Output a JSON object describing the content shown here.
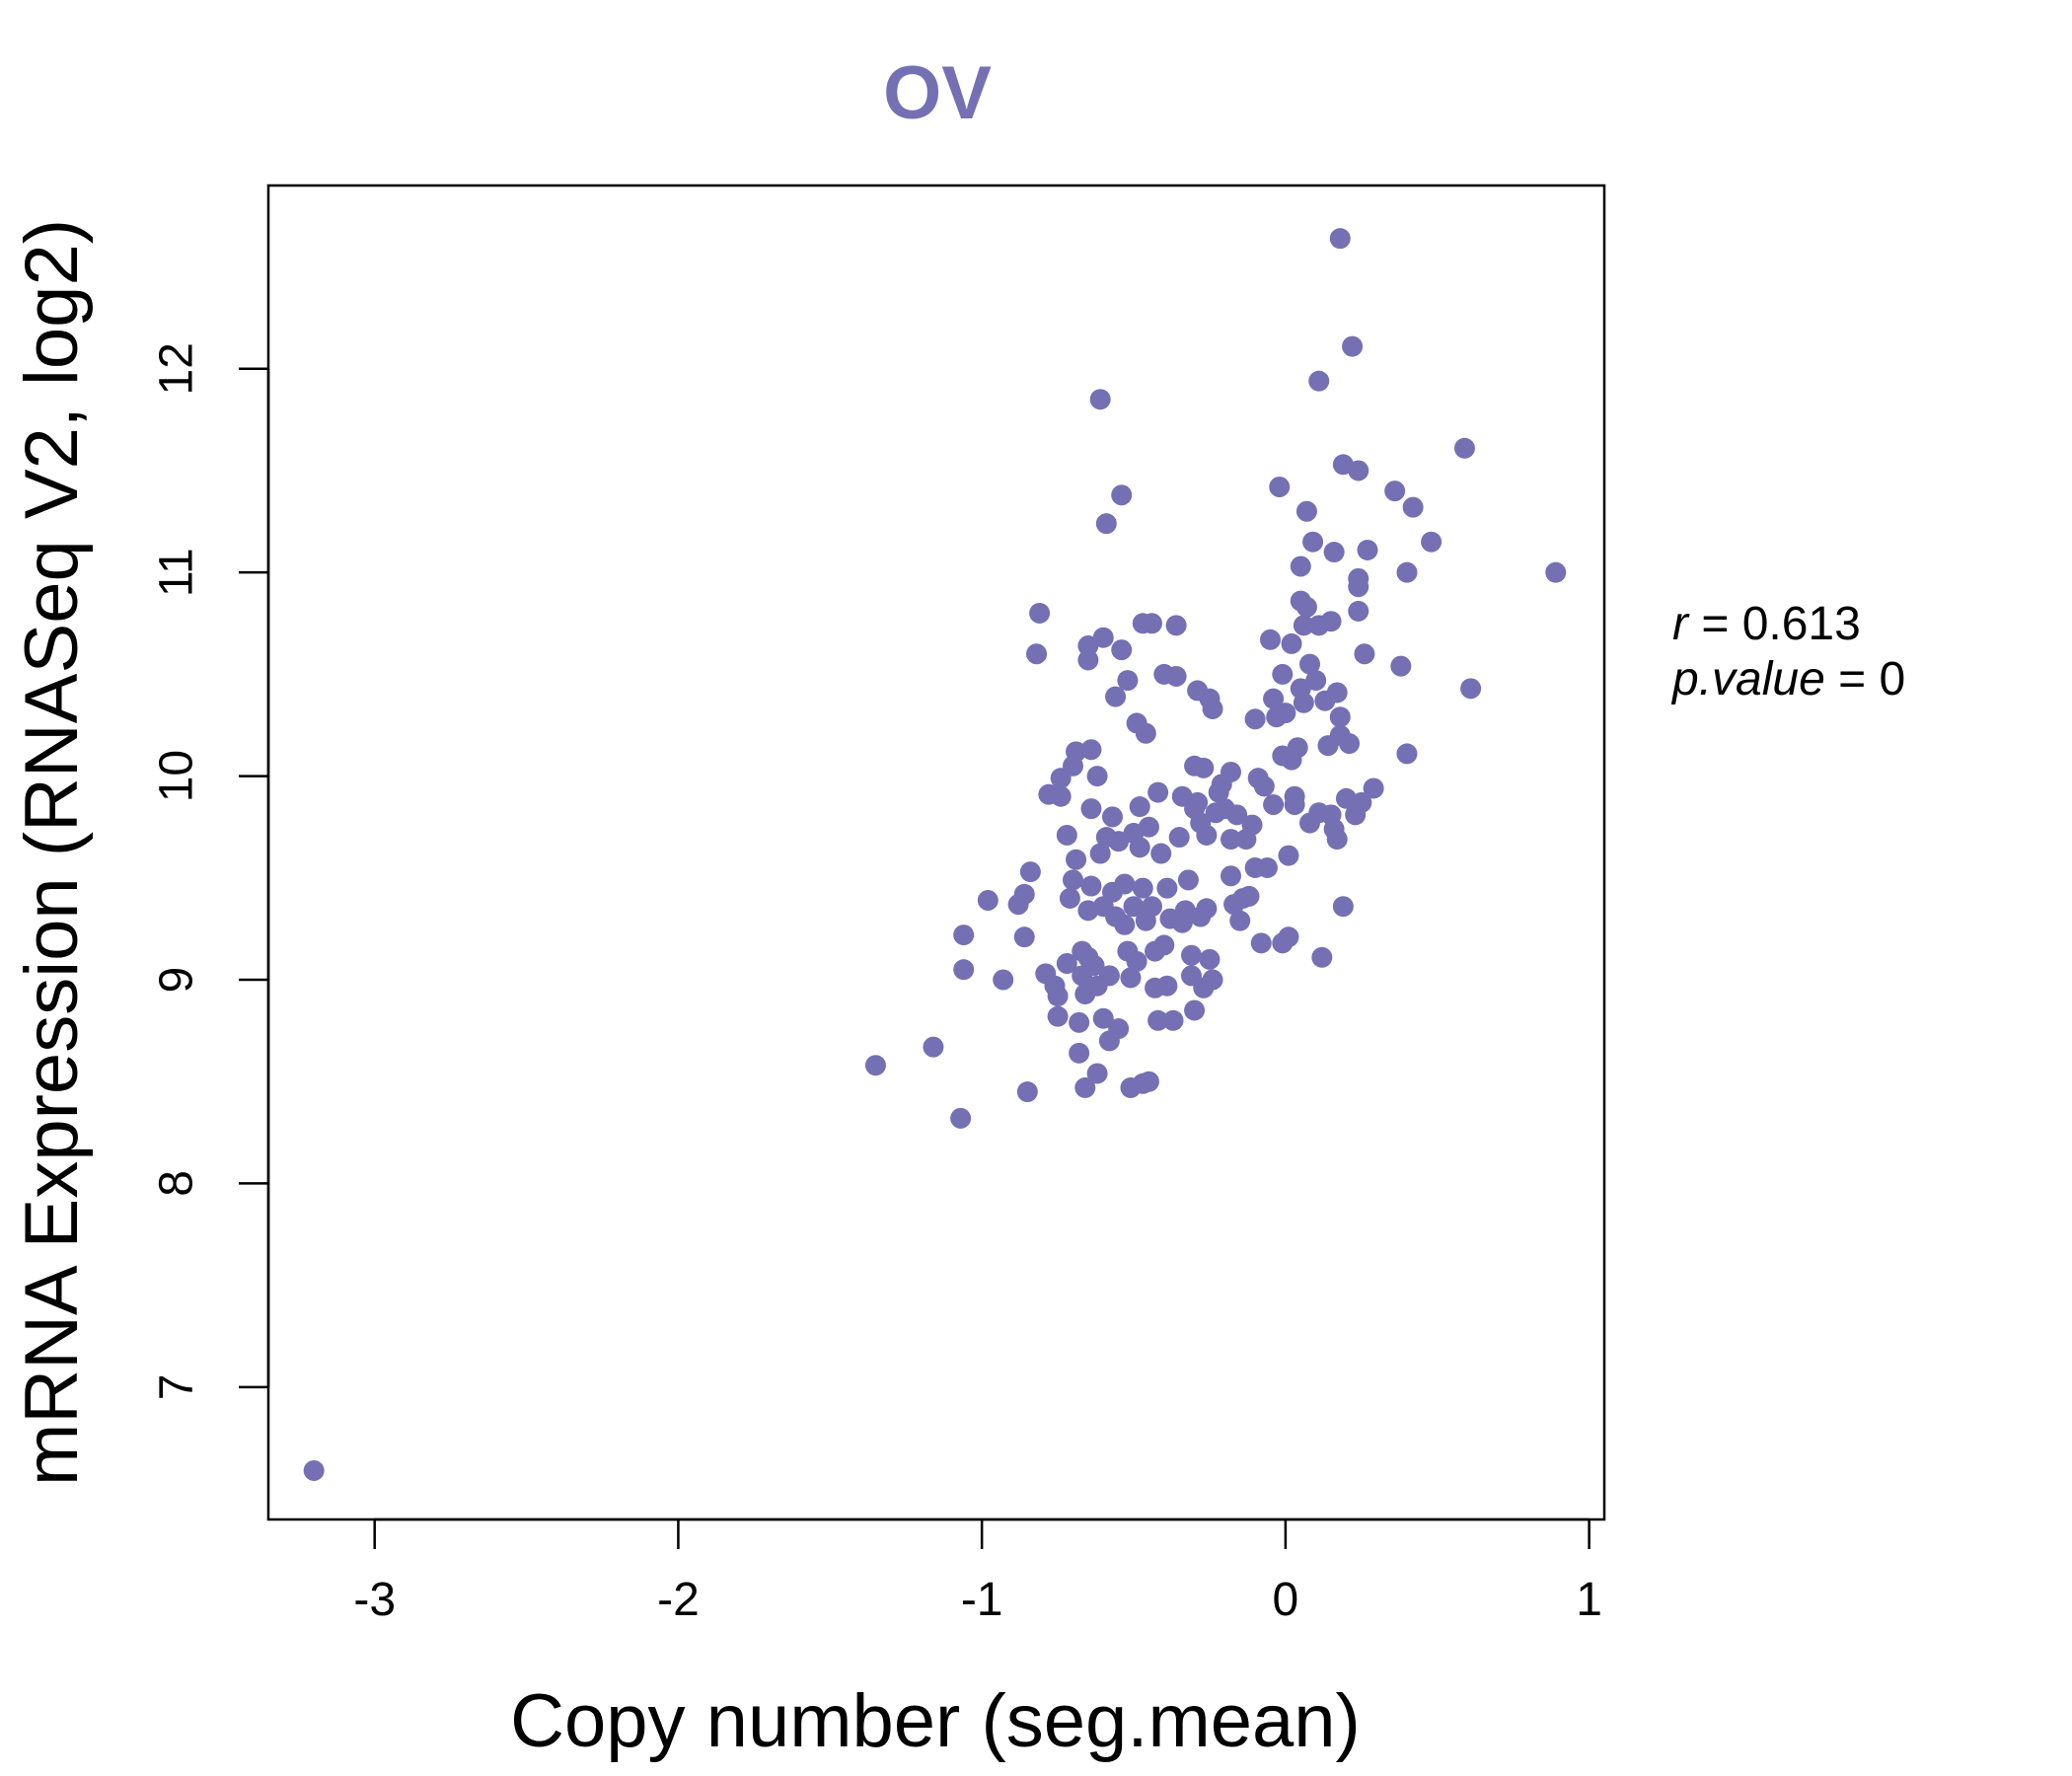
{
  "chart_data": {
    "type": "scatter",
    "title": "OV",
    "xlabel": "Copy number (seg.mean)",
    "ylabel": "mRNA Expression (RNASeq V2, log2)",
    "xlim": [
      -3.35,
      1.05
    ],
    "ylim": [
      6.35,
      12.9
    ],
    "x_ticks": [
      "-3",
      "-2",
      "-1",
      "0",
      "1"
    ],
    "x_tick_values": [
      -3,
      -2,
      -1,
      0,
      1
    ],
    "y_ticks": [
      "7",
      "8",
      "9",
      "10",
      "11",
      "12"
    ],
    "y_tick_values": [
      7,
      8,
      9,
      10,
      11,
      12
    ],
    "stats": {
      "r": "0.613",
      "p_value": "0"
    },
    "point_color": "#7570b3",
    "points": [
      [
        -3.2,
        6.59
      ],
      [
        -1.35,
        8.58
      ],
      [
        -1.16,
        8.67
      ],
      [
        -1.07,
        8.32
      ],
      [
        -1.06,
        9.22
      ],
      [
        -1.06,
        9.05
      ],
      [
        -0.98,
        9.39
      ],
      [
        -0.93,
        9.0
      ],
      [
        -0.88,
        9.37
      ],
      [
        -0.86,
        9.42
      ],
      [
        -0.86,
        9.21
      ],
      [
        -0.85,
        8.45
      ],
      [
        -0.84,
        9.53
      ],
      [
        -0.82,
        10.6
      ],
      [
        -0.81,
        10.8
      ],
      [
        -0.79,
        9.03
      ],
      [
        -0.78,
        9.91
      ],
      [
        -0.76,
        8.97
      ],
      [
        -0.75,
        8.82
      ],
      [
        -0.75,
        8.92
      ],
      [
        -0.74,
        9.9
      ],
      [
        -0.74,
        9.99
      ],
      [
        -0.72,
        9.08
      ],
      [
        -0.72,
        9.71
      ],
      [
        -0.71,
        9.4
      ],
      [
        -0.7,
        10.05
      ],
      [
        -0.7,
        9.49
      ],
      [
        -0.69,
        10.12
      ],
      [
        -0.69,
        9.59
      ],
      [
        -0.68,
        8.79
      ],
      [
        -0.68,
        8.64
      ],
      [
        -0.67,
        9.14
      ],
      [
        -0.67,
        9.02
      ],
      [
        -0.66,
        8.47
      ],
      [
        -0.66,
        8.93
      ],
      [
        -0.65,
        9.11
      ],
      [
        -0.65,
        10.64
      ],
      [
        -0.65,
        10.57
      ],
      [
        -0.65,
        9.34
      ],
      [
        -0.64,
        10.13
      ],
      [
        -0.64,
        9.84
      ],
      [
        -0.64,
        9.46
      ],
      [
        -0.63,
        9.07
      ],
      [
        -0.62,
        8.97
      ],
      [
        -0.62,
        8.54
      ],
      [
        -0.62,
        10.0
      ],
      [
        -0.61,
        11.85
      ],
      [
        -0.61,
        9.62
      ],
      [
        -0.6,
        10.68
      ],
      [
        -0.6,
        8.81
      ],
      [
        -0.6,
        9.36
      ],
      [
        -0.59,
        11.24
      ],
      [
        -0.59,
        9.7
      ],
      [
        -0.58,
        9.02
      ],
      [
        -0.58,
        8.7
      ],
      [
        -0.57,
        9.43
      ],
      [
        -0.57,
        9.8
      ],
      [
        -0.56,
        10.39
      ],
      [
        -0.56,
        9.31
      ],
      [
        -0.55,
        8.76
      ],
      [
        -0.55,
        9.68
      ],
      [
        -0.54,
        11.38
      ],
      [
        -0.54,
        10.62
      ],
      [
        -0.53,
        9.47
      ],
      [
        -0.53,
        9.27
      ],
      [
        -0.52,
        10.47
      ],
      [
        -0.52,
        9.14
      ],
      [
        -0.51,
        9.01
      ],
      [
        -0.51,
        8.47
      ],
      [
        -0.5,
        9.72
      ],
      [
        -0.5,
        9.36
      ],
      [
        -0.49,
        10.26
      ],
      [
        -0.49,
        9.09
      ],
      [
        -0.48,
        9.65
      ],
      [
        -0.48,
        9.85
      ],
      [
        -0.47,
        9.45
      ],
      [
        -0.47,
        8.49
      ],
      [
        -0.47,
        10.75
      ],
      [
        -0.46,
        10.21
      ],
      [
        -0.46,
        9.29
      ],
      [
        -0.45,
        8.5
      ],
      [
        -0.45,
        9.75
      ],
      [
        -0.44,
        10.75
      ],
      [
        -0.44,
        9.36
      ],
      [
        -0.43,
        8.96
      ],
      [
        -0.43,
        9.14
      ],
      [
        -0.42,
        8.8
      ],
      [
        -0.42,
        9.92
      ],
      [
        -0.41,
        9.62
      ],
      [
        -0.4,
        10.5
      ],
      [
        -0.4,
        9.17
      ],
      [
        -0.39,
        9.45
      ],
      [
        -0.39,
        8.97
      ],
      [
        -0.38,
        9.3
      ],
      [
        -0.37,
        8.8
      ],
      [
        -0.36,
        10.49
      ],
      [
        -0.36,
        10.74
      ],
      [
        -0.35,
        9.7
      ],
      [
        -0.34,
        9.28
      ],
      [
        -0.34,
        9.9
      ],
      [
        -0.33,
        9.34
      ],
      [
        -0.32,
        9.49
      ],
      [
        -0.31,
        9.12
      ],
      [
        -0.31,
        9.02
      ],
      [
        -0.3,
        10.05
      ],
      [
        -0.3,
        8.85
      ],
      [
        -0.3,
        9.84
      ],
      [
        -0.29,
        9.87
      ],
      [
        -0.29,
        10.42
      ],
      [
        -0.28,
        9.77
      ],
      [
        -0.28,
        9.31
      ],
      [
        -0.27,
        8.96
      ],
      [
        -0.27,
        10.04
      ],
      [
        -0.26,
        9.35
      ],
      [
        -0.26,
        9.71
      ],
      [
        -0.25,
        10.38
      ],
      [
        -0.25,
        9.1
      ],
      [
        -0.24,
        9.0
      ],
      [
        -0.24,
        10.33
      ],
      [
        -0.23,
        9.82
      ],
      [
        -0.22,
        9.92
      ],
      [
        -0.21,
        9.96
      ],
      [
        -0.2,
        9.84
      ],
      [
        -0.18,
        10.02
      ],
      [
        -0.18,
        9.69
      ],
      [
        -0.18,
        9.51
      ],
      [
        -0.17,
        9.37
      ],
      [
        -0.16,
        9.81
      ],
      [
        -0.15,
        9.29
      ],
      [
        -0.14,
        9.4
      ],
      [
        -0.13,
        9.69
      ],
      [
        -0.12,
        9.41
      ],
      [
        -0.11,
        9.76
      ],
      [
        -0.1,
        10.28
      ],
      [
        -0.1,
        9.55
      ],
      [
        -0.09,
        9.99
      ],
      [
        -0.08,
        9.18
      ],
      [
        -0.07,
        9.95
      ],
      [
        -0.06,
        9.55
      ],
      [
        -0.05,
        10.67
      ],
      [
        -0.04,
        9.86
      ],
      [
        -0.04,
        10.38
      ],
      [
        -0.03,
        10.29
      ],
      [
        -0.02,
        11.42
      ],
      [
        -0.01,
        10.5
      ],
      [
        -0.01,
        10.1
      ],
      [
        -0.01,
        9.18
      ],
      [
        0.0,
        10.31
      ],
      [
        0.01,
        9.21
      ],
      [
        0.01,
        9.61
      ],
      [
        0.02,
        10.65
      ],
      [
        0.02,
        10.08
      ],
      [
        0.03,
        9.9
      ],
      [
        0.03,
        9.86
      ],
      [
        0.04,
        10.14
      ],
      [
        0.05,
        10.86
      ],
      [
        0.05,
        11.03
      ],
      [
        0.05,
        10.43
      ],
      [
        0.06,
        10.74
      ],
      [
        0.06,
        10.36
      ],
      [
        0.07,
        11.3
      ],
      [
        0.07,
        10.83
      ],
      [
        0.08,
        9.77
      ],
      [
        0.08,
        10.55
      ],
      [
        0.09,
        11.15
      ],
      [
        0.1,
        10.47
      ],
      [
        0.11,
        11.94
      ],
      [
        0.11,
        10.74
      ],
      [
        0.11,
        9.82
      ],
      [
        0.12,
        9.11
      ],
      [
        0.13,
        10.37
      ],
      [
        0.14,
        10.15
      ],
      [
        0.15,
        9.81
      ],
      [
        0.15,
        10.76
      ],
      [
        0.16,
        11.1
      ],
      [
        0.16,
        9.74
      ],
      [
        0.17,
        9.69
      ],
      [
        0.17,
        10.41
      ],
      [
        0.18,
        10.29
      ],
      [
        0.18,
        10.2
      ],
      [
        0.18,
        12.64
      ],
      [
        0.19,
        11.53
      ],
      [
        0.19,
        9.36
      ],
      [
        0.2,
        9.89
      ],
      [
        0.21,
        10.16
      ],
      [
        0.22,
        12.11
      ],
      [
        0.23,
        9.81
      ],
      [
        0.24,
        11.5
      ],
      [
        0.24,
        10.97
      ],
      [
        0.24,
        10.93
      ],
      [
        0.24,
        10.81
      ],
      [
        0.25,
        9.87
      ],
      [
        0.26,
        10.6
      ],
      [
        0.27,
        11.11
      ],
      [
        0.29,
        9.94
      ],
      [
        0.36,
        11.4
      ],
      [
        0.38,
        10.54
      ],
      [
        0.4,
        11.0
      ],
      [
        0.4,
        10.11
      ],
      [
        0.42,
        11.32
      ],
      [
        0.48,
        11.15
      ],
      [
        0.59,
        11.61
      ],
      [
        0.61,
        10.43
      ],
      [
        0.89,
        11.0
      ]
    ]
  }
}
